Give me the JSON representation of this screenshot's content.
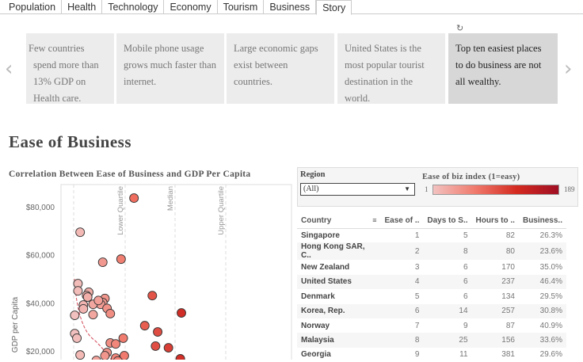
{
  "tabs": [
    "Population",
    "Health",
    "Technology",
    "Economy",
    "Tourism",
    "Business",
    "Story"
  ],
  "active_tab": "Story",
  "story": {
    "revert_icon": "revert-icon",
    "points": [
      "Few countries spend more than 13%  GDP on Health care.",
      "Mobile phone usage grows much faster than internet.",
      "Large economic gaps exist between countries.",
      "United States is the most popular tourist destination in the world.",
      "Top ten easiest places to do business are not all wealthy."
    ]
  },
  "page_title": "Ease of Business",
  "filters": {
    "region_label": "Region",
    "region_value": "(All)",
    "legend_title": "Ease of biz index (1=easy)",
    "legend_min": "1",
    "legend_max": "189",
    "legend_colors": [
      "#f2c2c0",
      "#a00f24"
    ]
  },
  "table": {
    "columns": [
      "Country",
      "Ease of ..",
      "Days to S..",
      "Hours to ..",
      "Business.."
    ],
    "rows": [
      [
        "Singapore",
        "1",
        "5",
        "82",
        "26.3%"
      ],
      [
        "Hong Kong SAR, C..",
        "2",
        "8",
        "80",
        "23.6%"
      ],
      [
        "New Zealand",
        "3",
        "6",
        "170",
        "35.0%"
      ],
      [
        "United States",
        "4",
        "6",
        "237",
        "46.4%"
      ],
      [
        "Denmark",
        "5",
        "6",
        "134",
        "29.5%"
      ],
      [
        "Korea, Rep.",
        "6",
        "14",
        "257",
        "30.8%"
      ],
      [
        "Norway",
        "7",
        "9",
        "87",
        "40.9%"
      ],
      [
        "Malaysia",
        "8",
        "25",
        "156",
        "33.6%"
      ],
      [
        "Georgia",
        "9",
        "11",
        "381",
        "29.6%"
      ]
    ]
  },
  "chart_data": {
    "type": "scatter",
    "title": "Correlation Between Ease of Business and GDP Per Capita",
    "ylabel": "GDP per Capita",
    "yticks": [
      "$80,000",
      "$60,000",
      "$40,000",
      "$20,000"
    ],
    "reference_lines": [
      "Lower Quartile",
      "Median",
      "Upper Quartile"
    ],
    "color_range": [
      1,
      189
    ],
    "points": [
      [
        57,
        83600
      ],
      [
        7,
        69400
      ],
      [
        45,
        58200
      ],
      [
        28,
        56900
      ],
      [
        5,
        48000
      ],
      [
        5,
        45000
      ],
      [
        15,
        44400
      ],
      [
        13,
        43000
      ],
      [
        14,
        42400
      ],
      [
        74,
        43000
      ],
      [
        30,
        41800
      ],
      [
        28,
        40100
      ],
      [
        10,
        39100
      ],
      [
        26,
        39400
      ],
      [
        19,
        39400
      ],
      [
        24,
        41000
      ],
      [
        10,
        37500
      ],
      [
        2,
        34800
      ],
      [
        19,
        35100
      ],
      [
        32,
        37700
      ],
      [
        35,
        35500
      ],
      [
        101,
        35800
      ],
      [
        67,
        30500
      ],
      [
        79,
        27900
      ],
      [
        2,
        27200
      ],
      [
        4,
        25300
      ],
      [
        47,
        25300
      ],
      [
        35,
        23300
      ],
      [
        40,
        22900
      ],
      [
        77,
        22000
      ],
      [
        89,
        21300
      ],
      [
        7,
        18300
      ],
      [
        32,
        19300
      ],
      [
        30,
        18000
      ],
      [
        40,
        17000
      ],
      [
        48,
        18000
      ],
      [
        100,
        16700
      ],
      [
        22,
        16000
      ],
      [
        42,
        15800
      ]
    ]
  }
}
